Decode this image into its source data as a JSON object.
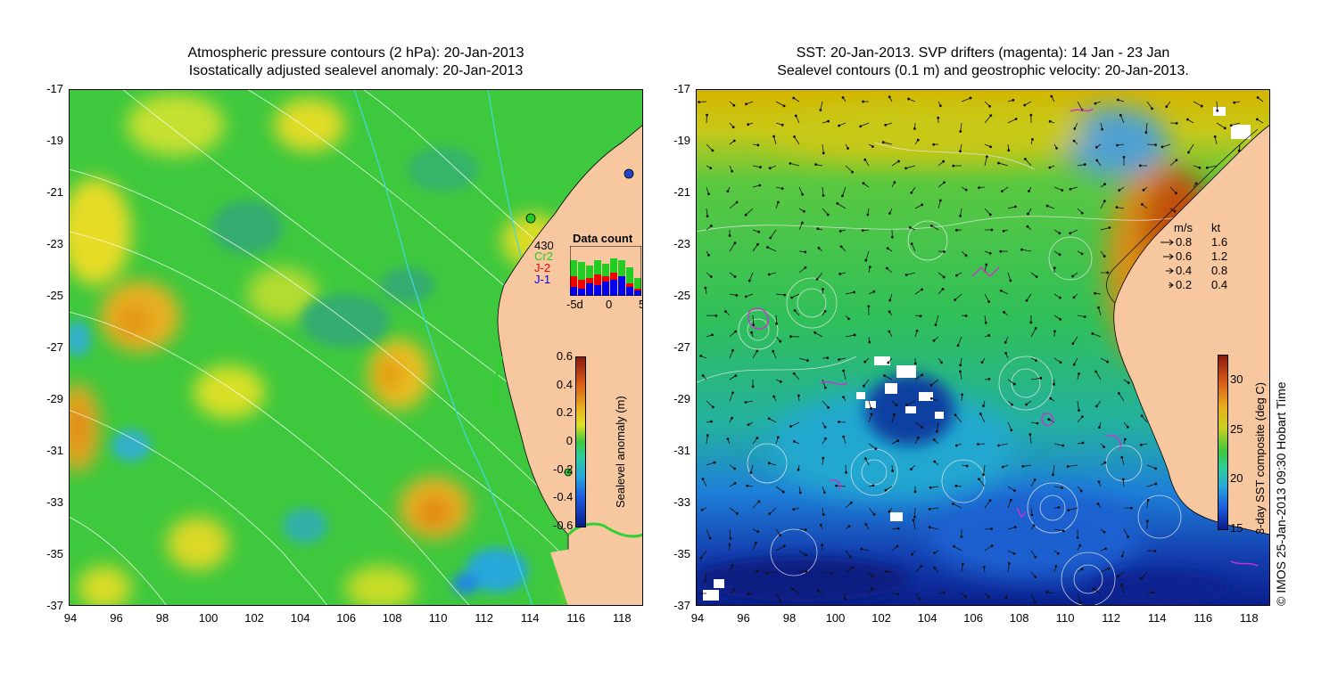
{
  "left_panel": {
    "title_line1": "Atmospheric pressure contours (2 hPa): 20-Jan-2013",
    "title_line2": "Isostatically adjusted sealevel anomaly: 20-Jan-2013",
    "colorbar": {
      "label": "Sealevel anomaly (m)",
      "ticks": [
        "0.6",
        "0.4",
        "0.2",
        "0",
        "-0.2",
        "-0.4",
        "-0.6"
      ]
    },
    "data_count": {
      "title": "Data count",
      "series_labels": [
        "430",
        "Cr2",
        "J-2",
        "J-1"
      ],
      "series_colors": [
        "#000000",
        "#22cc22",
        "#ee0000",
        "#0000ee"
      ],
      "x_ticks": [
        "-5d",
        "0",
        "5"
      ]
    }
  },
  "right_panel": {
    "title_line1": "SST: 20-Jan-2013. SVP drifters (magenta): 14 Jan - 23 Jan",
    "title_line2": "Sealevel contours (0.1 m) and geostrophic velocity: 20-Jan-2013.",
    "speed_legend": {
      "headers": [
        "m/s",
        "kt"
      ],
      "rows": [
        {
          "ms": "0.8",
          "kt": "1.6"
        },
        {
          "ms": "0.6",
          "kt": "1.2"
        },
        {
          "ms": "0.4",
          "kt": "0.8"
        },
        {
          "ms": "0.2",
          "kt": "0.4"
        }
      ]
    },
    "colorbar": {
      "label": "3-day SST composite (deg C)",
      "ticks": [
        "30",
        "25",
        "20",
        "15"
      ]
    }
  },
  "map_axes": {
    "y_ticks": [
      "-17",
      "-19",
      "-21",
      "-23",
      "-25",
      "-27",
      "-29",
      "-31",
      "-33",
      "-35",
      "-37"
    ],
    "x_ticks": [
      "94",
      "96",
      "98",
      "100",
      "102",
      "104",
      "106",
      "108",
      "110",
      "112",
      "114",
      "116",
      "118"
    ]
  },
  "copyright": "© IMOS 25-Jan-2013 09:30 Hobart Time",
  "colors": {
    "land": "#f7c8a0",
    "anomaly_base": "#3ec83e",
    "sst_warm": "#d4a800",
    "sst_mid": "#2fbf5a",
    "sst_cool": "#1e7fd8",
    "sst_cold": "#0a1e8c",
    "drifter": "#cc33cc"
  }
}
